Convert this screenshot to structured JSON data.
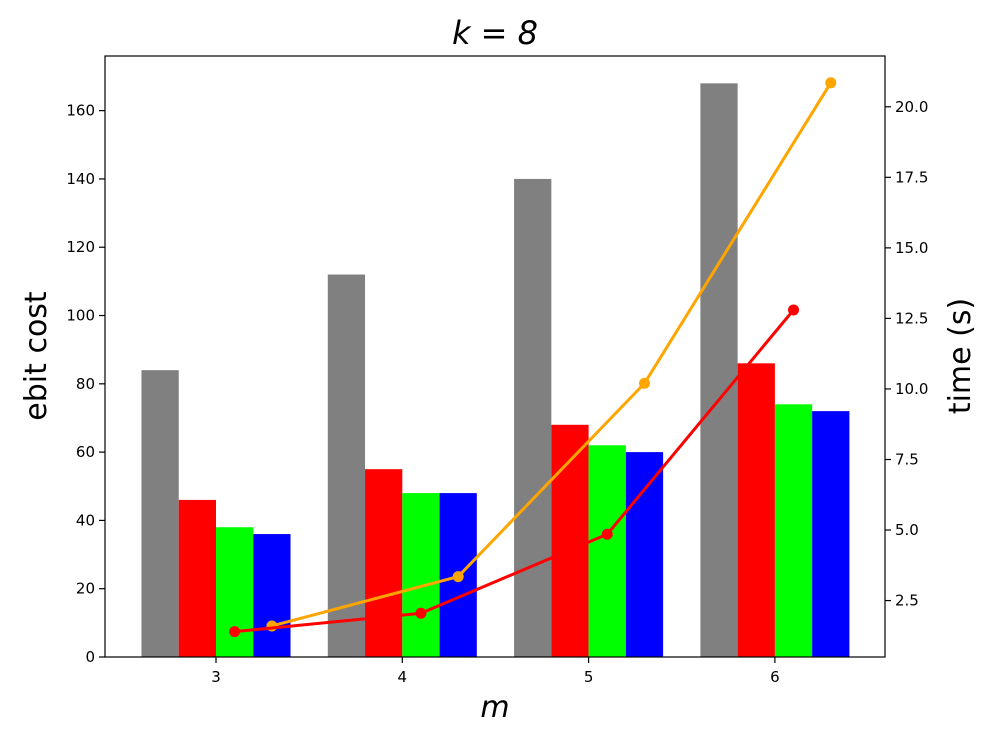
{
  "chart_data": {
    "type": "bar",
    "title": "k = 8",
    "xlabel": "m",
    "ylabel": "ebit cost",
    "y2label": "time (s)",
    "categories": [
      "3",
      "4",
      "5",
      "6"
    ],
    "ylim": [
      0,
      176
    ],
    "y2lim": [
      0.5,
      21.8
    ],
    "yticks": [
      "0",
      "20",
      "40",
      "60",
      "80",
      "100",
      "120",
      "140",
      "160"
    ],
    "y2ticks": [
      "2.5",
      "5.0",
      "7.5",
      "10.0",
      "12.5",
      "15.0",
      "17.5",
      "20.0"
    ],
    "grid": false,
    "legend": "none",
    "series": [
      {
        "color": "#808080",
        "values": [
          84,
          112,
          140,
          168
        ]
      },
      {
        "color": "#ff0000",
        "values": [
          46,
          55,
          68,
          86
        ]
      },
      {
        "color": "#00ff00",
        "values": [
          38,
          48,
          62,
          74
        ]
      },
      {
        "color": "#0000ff",
        "values": [
          36,
          48,
          60,
          72
        ]
      }
    ],
    "time_series": [
      {
        "color": "#ffa500",
        "points": [
          [
            3.3,
            1.6
          ],
          [
            4.3,
            3.35
          ],
          [
            5.3,
            10.2
          ],
          [
            6.3,
            20.85
          ]
        ]
      },
      {
        "color": "#ff0000",
        "points": [
          [
            3.1,
            1.4
          ],
          [
            4.1,
            2.05
          ],
          [
            5.1,
            4.85
          ],
          [
            6.1,
            12.8
          ]
        ]
      }
    ]
  }
}
